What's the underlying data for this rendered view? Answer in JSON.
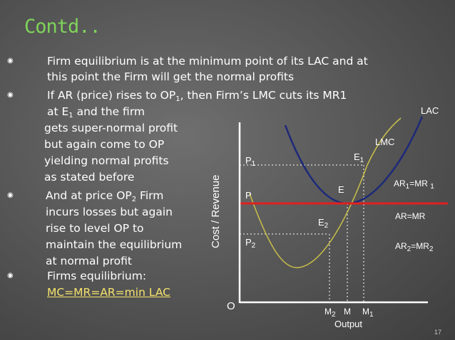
{
  "slide": {
    "title": "Contd..",
    "page_number": "17",
    "bullet_symbol": "◉"
  },
  "text": {
    "b1_line1": "Firm equilibrium is at the minimum point of its LAC and at",
    "b1_line2": "this point the Firm will get the normal profits",
    "b2_line1_a": "If AR (price) rises to OP",
    "b2_line1_sub": "1",
    "b2_line1_b": ", then Firm’s LMC cuts its MR1",
    "b2_line2_a": "at E",
    "b2_line2_sub": "1",
    "b2_line2_b": " and the firm",
    "b2_line3": "gets super-normal profit",
    "b2_line4": "but again come to OP",
    "b2_line5": "yielding normal profits",
    "b2_line6": "as stated before",
    "b3_line1_a": "And at price OP",
    "b3_line1_sub": "2",
    "b3_line1_b": " Firm",
    "b3_line2": "incurs losses but again",
    "b3_line3": "rise to level OP to",
    "b3_line4": "maintain the equilibrium",
    "b3_line5": "at normal profit",
    "b4_line1": "Firms equilibrium:",
    "b4_line2": "MC=MR=AR=min LAC"
  },
  "graph": {
    "y_axis_label": "Cost / Revenue",
    "x_axis_label": "Output",
    "origin": "O",
    "lac": "LAC",
    "lmc": "LMC",
    "p1": "P",
    "p1_sub": "1",
    "p": "P",
    "p2": "P",
    "p2_sub": "2",
    "e": "E",
    "e1": "E",
    "e1_sub": "1",
    "e2": "E",
    "e2_sub": "2",
    "ar1_a": "AR",
    "ar1_sub": "1",
    "ar1_b": "=MR ",
    "ar1_sub2": "1",
    "ar_mr": "AR=MR",
    "ar2_a": "AR",
    "ar2_sub": "2",
    "ar2_b": "=MR",
    "ar2_sub2": "2",
    "m2": "M",
    "m2_sub": "2",
    "m": "M",
    "m1": "M",
    "m1_sub": "1",
    "colors": {
      "lac": "#1e2a78",
      "lmc": "#c9c04a",
      "ar_line": "#e02020",
      "axis": "#ffffff",
      "title": "#7fd35a",
      "highlight": "#f5e36b"
    }
  }
}
